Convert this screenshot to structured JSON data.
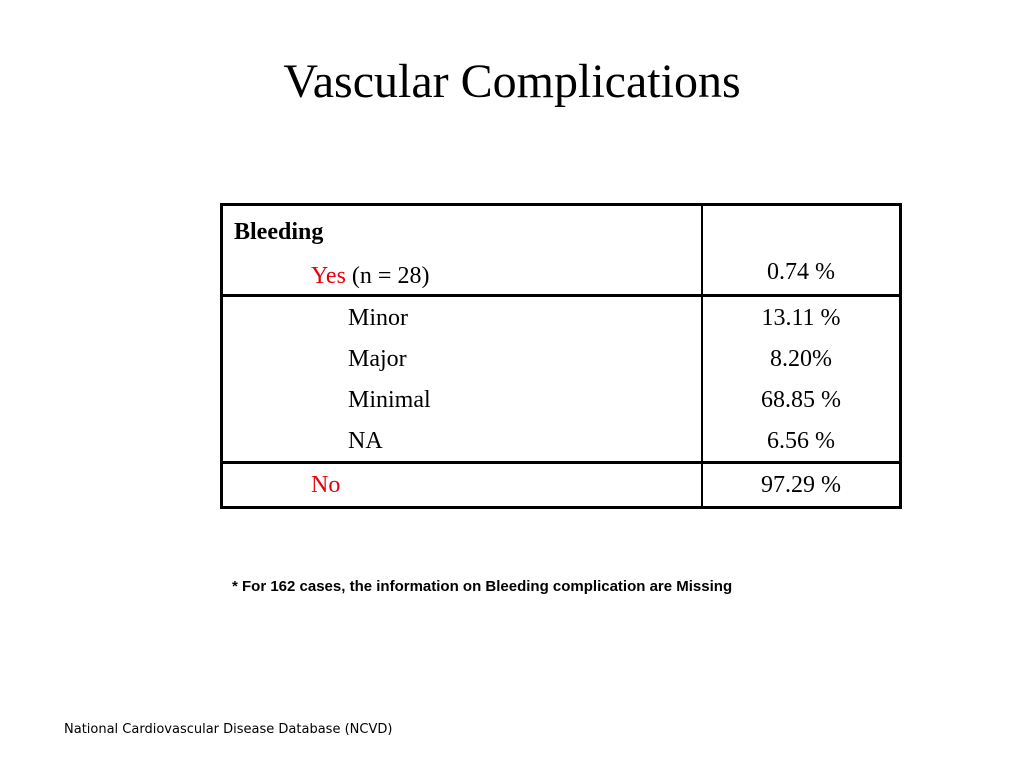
{
  "title": "Vascular Complications",
  "table": {
    "header": "Bleeding",
    "yes": {
      "label": "Yes",
      "count": " (n = 28)",
      "value": "0.74 %"
    },
    "sub_rows": [
      {
        "label": "Minor",
        "value": "13.11 %"
      },
      {
        "label": "Major",
        "value": "8.20%"
      },
      {
        "label": "Minimal",
        "value": "68.85 %"
      },
      {
        "label": "NA",
        "value": "6.56 %"
      }
    ],
    "no": {
      "label": "No",
      "value": "97.29 %"
    }
  },
  "footnote": "* For 162 cases, the information on Bleeding complication are Missing",
  "source": "National Cardiovascular Disease Database (NCVD)",
  "colors": {
    "highlight": "#e8000b",
    "text": "#000000",
    "background": "#ffffff"
  }
}
